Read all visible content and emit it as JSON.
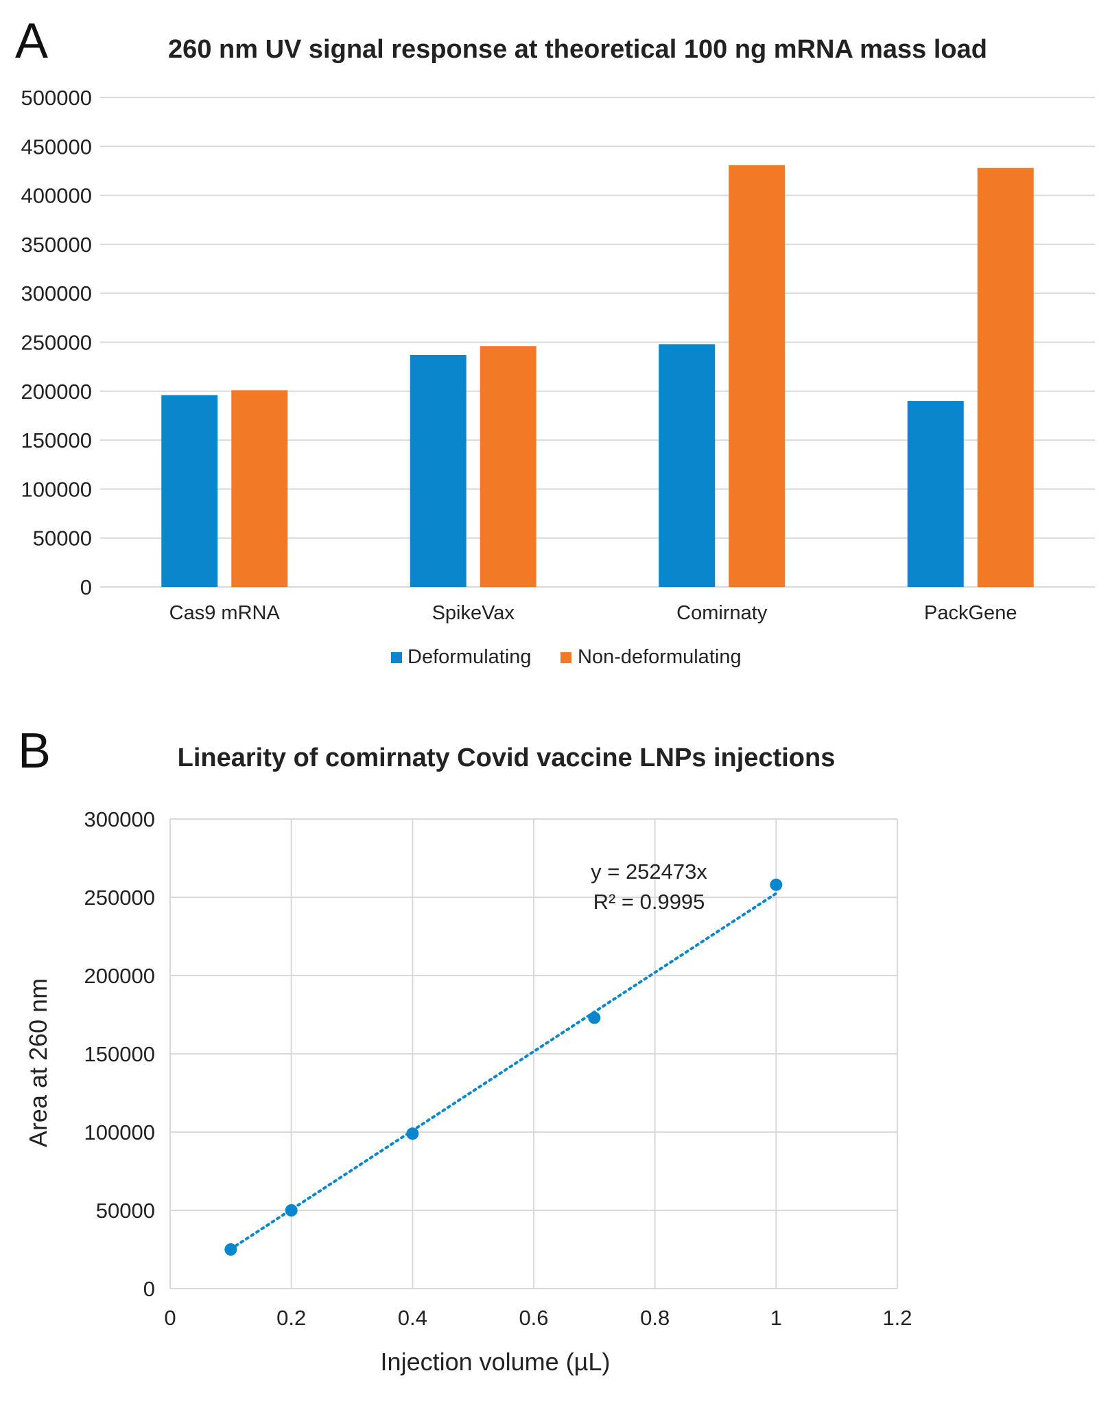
{
  "colors": {
    "deformulating": "#0a87cc",
    "non_deformulating": "#f27a26",
    "scatter": "#0a87cc"
  },
  "chart_data": [
    {
      "panel": "A",
      "type": "bar",
      "title": "260 nm UV signal response at theoretical 100 ng mRNA mass load",
      "xlabel": "",
      "ylabel": "",
      "categories": [
        "Cas9 mRNA",
        "SpikeVax",
        "Comirnaty",
        "PackGene"
      ],
      "series": [
        {
          "name": "Deformulating",
          "values": [
            196000,
            237000,
            248000,
            190000
          ]
        },
        {
          "name": "Non-deformulating",
          "values": [
            201000,
            246000,
            431000,
            428000
          ]
        }
      ],
      "ylim": [
        0,
        500000
      ],
      "yticks": [
        "0",
        "50000",
        "100000",
        "150000",
        "200000",
        "250000",
        "300000",
        "350000",
        "400000",
        "450000",
        "500000"
      ],
      "grid": true,
      "legend": "bottom-center"
    },
    {
      "panel": "B",
      "type": "scatter",
      "title": "Linearity of comirnaty Covid vaccine LNPs injections",
      "xlabel": "Injection volume (µL)",
      "ylabel": "Area at 260 nm",
      "x": [
        0.1,
        0.2,
        0.4,
        0.7,
        1.0
      ],
      "y": [
        25000,
        50000,
        99000,
        173000,
        258000
      ],
      "xlim": [
        0,
        1.2
      ],
      "ylim": [
        0,
        300000
      ],
      "xticks": [
        "0",
        "0.2",
        "0.4",
        "0.6",
        "0.8",
        "1",
        "1.2"
      ],
      "yticks": [
        "0",
        "50000",
        "100000",
        "150000",
        "200000",
        "250000",
        "300000"
      ],
      "trendline": {
        "slope": 252473,
        "x_range": [
          0.1,
          1.0
        ],
        "style": "dotted"
      },
      "equation": "y = 252473x",
      "r_squared": "R² = 0.9995",
      "grid": true
    }
  ]
}
